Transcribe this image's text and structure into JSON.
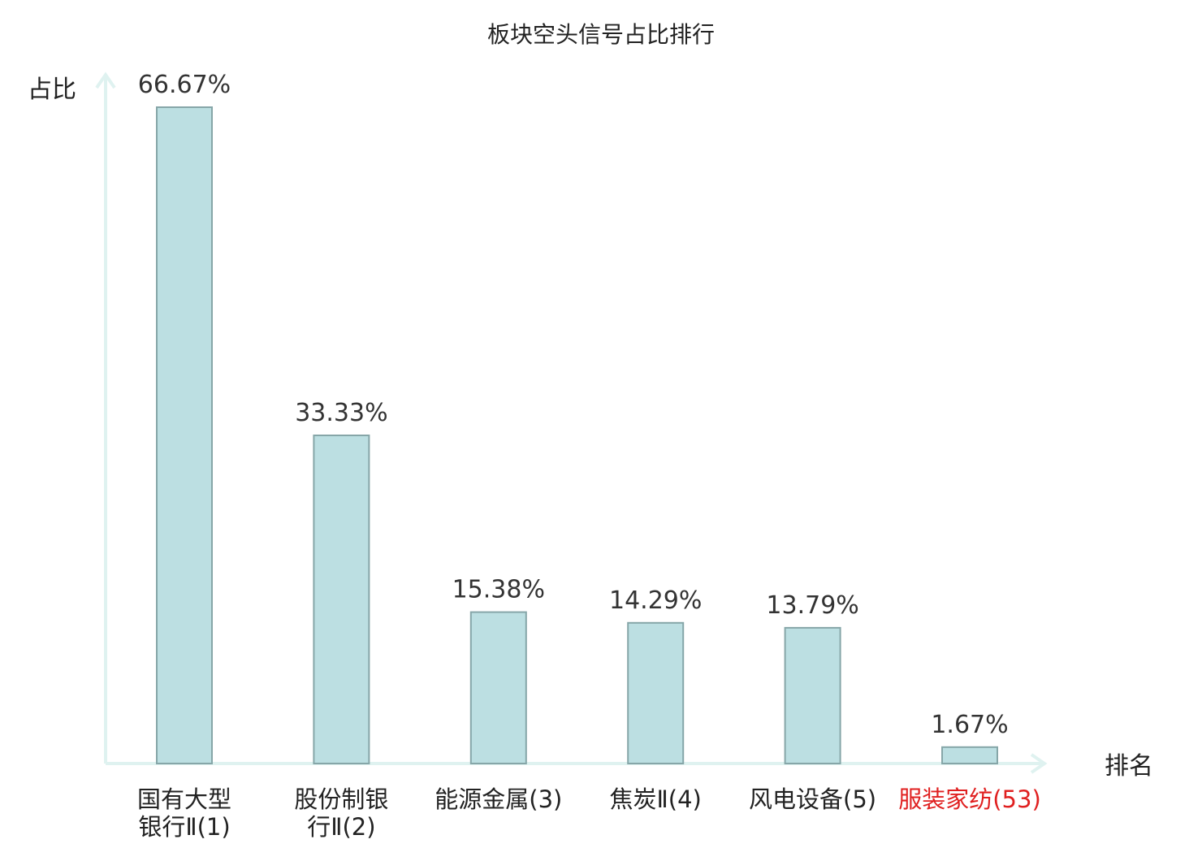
{
  "chart_data": {
    "type": "bar",
    "title": "板块空头信号占比排行",
    "ylabel": "占比",
    "xlabel": "排名",
    "ylim": [
      0,
      70
    ],
    "grid": false,
    "legend": "none",
    "categories": [
      [
        "国有大型",
        "银行Ⅱ(1)"
      ],
      [
        "股份制银",
        "行Ⅱ(2)"
      ],
      [
        "能源金属(3)"
      ],
      [
        "焦炭Ⅱ(4)"
      ],
      [
        "风电设备(5)"
      ],
      [
        "服装家纺(53)"
      ]
    ],
    "values": [
      66.67,
      33.33,
      15.38,
      14.29,
      13.79,
      1.67
    ],
    "value_labels": [
      "66.67%",
      "33.33%",
      "15.38%",
      "14.29%",
      "13.79%",
      "1.67%"
    ],
    "highlight_index": 5
  },
  "colors": {
    "bar_fill": "#bcdfe2",
    "bar_stroke": "#86a6a8",
    "axis": "#dff2f0",
    "text": "#333333",
    "highlight": "#e02020"
  }
}
